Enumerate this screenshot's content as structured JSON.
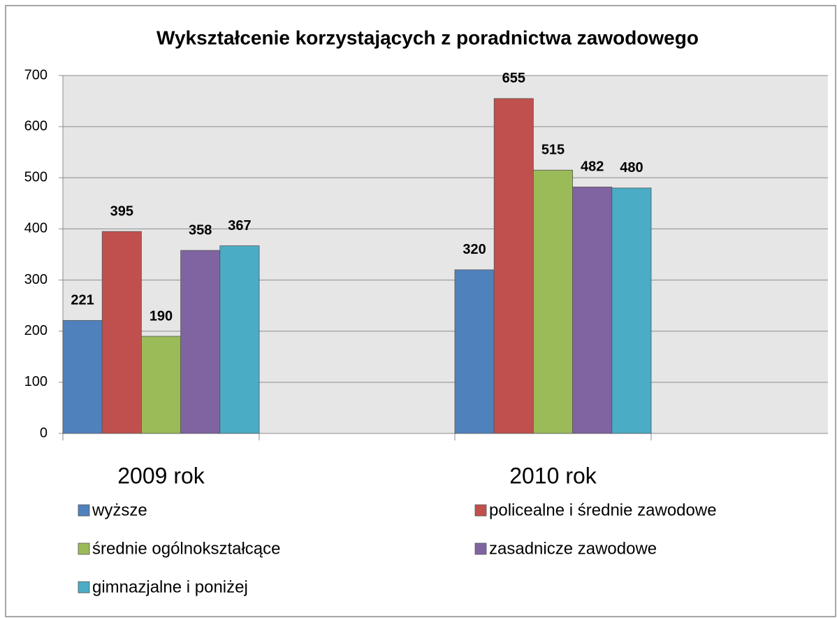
{
  "chart_data": {
    "type": "bar",
    "title": "Wykształcenie korzystających z poradnictwa zawodowego",
    "categories": [
      "2009 rok",
      "2010 rok"
    ],
    "series": [
      {
        "name": "wyższe",
        "color": "#4f81bd",
        "values": [
          221,
          320
        ]
      },
      {
        "name": "policealne i średnie zawodowe",
        "color": "#c0504d",
        "values": [
          395,
          655
        ]
      },
      {
        "name": "średnie ogólnokształcące",
        "color": "#9bbb59",
        "values": [
          190,
          515
        ]
      },
      {
        "name": "zasadnicze zawodowe",
        "color": "#8064a2",
        "values": [
          358,
          482
        ]
      },
      {
        "name": "gimnazjalne i poniżej",
        "color": "#4bacc6",
        "values": [
          367,
          480
        ]
      }
    ],
    "ylim": [
      0,
      700
    ],
    "yticks": [
      0,
      100,
      200,
      300,
      400,
      500,
      600,
      700
    ],
    "grid": true,
    "legend": "bottom"
  }
}
